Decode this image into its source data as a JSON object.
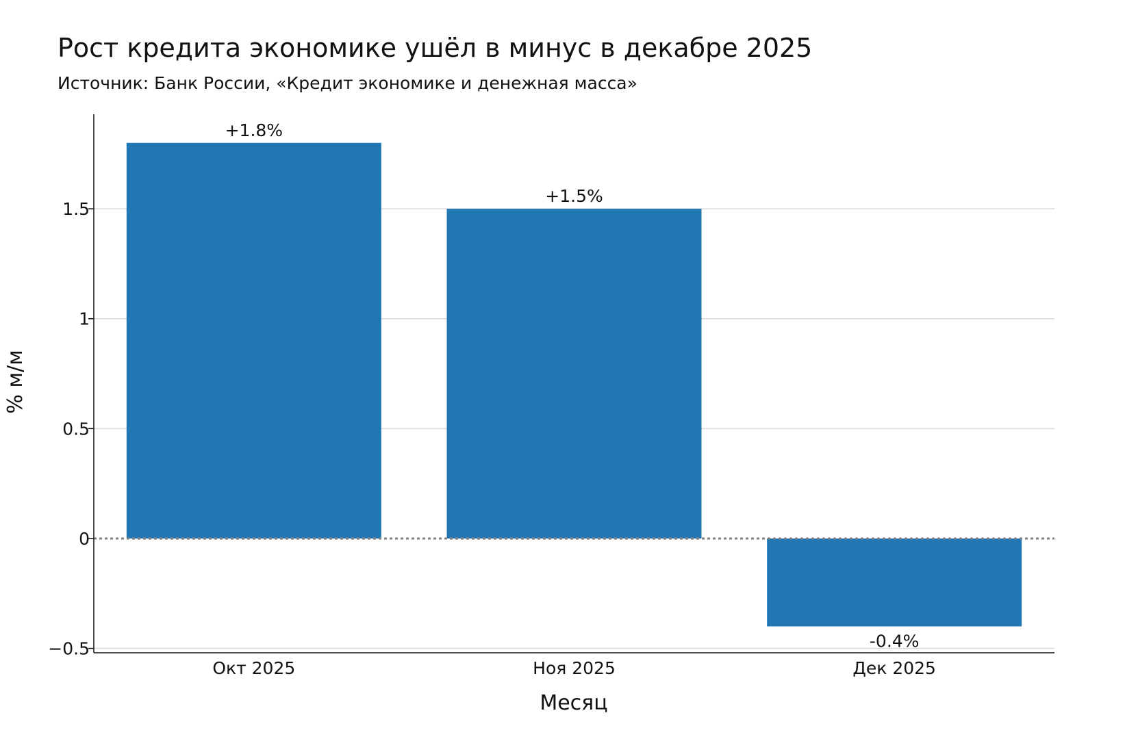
{
  "chart_data": {
    "type": "bar",
    "title": "Рост кредита экономике ушёл в минус в декабре 2025",
    "subtitle": "Источник: Банк России, «Кредит экономике и денежная масса»",
    "xlabel": "Месяц",
    "ylabel": "% м/м",
    "categories": [
      "Окт 2025",
      "Ноя 2025",
      "Дек 2025"
    ],
    "values": [
      1.8,
      1.5,
      -0.4
    ],
    "data_labels": [
      "+1.8%",
      "+1.5%",
      "-0.4%"
    ],
    "ylim": [
      -0.52,
      1.93
    ],
    "yticks": [
      -0.5,
      0,
      0.5,
      1,
      1.5
    ],
    "ytick_labels": [
      "−0.5",
      "0",
      "0.5",
      "1",
      "1.5"
    ],
    "grid": true,
    "zero_line": "dotted",
    "bar_color": "#2077b3",
    "grid_color": "#d9d9d9",
    "zero_line_color": "#808080"
  }
}
